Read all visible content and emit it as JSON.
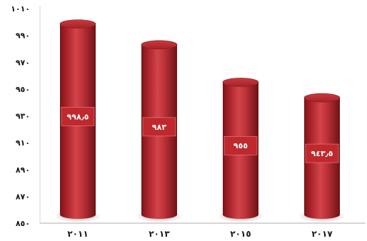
{
  "chart_data": {
    "type": "bar",
    "bar_shape": "cylinder",
    "categories": [
      "٢٠١١",
      "٢٠١٣",
      "٢٠١٥",
      "٢٠١٧"
    ],
    "values": [
      998.5,
      983,
      955,
      943.5
    ],
    "value_labels": [
      "٩٩٨٫٥",
      "٩٨٣",
      "٩٥٥",
      "٩٤٣٫٥"
    ],
    "yticks": [
      850,
      870,
      890,
      910,
      930,
      950,
      970,
      990,
      1010
    ],
    "ytick_labels": [
      "٨٥٠",
      "٨٧٠",
      "٨٩٠",
      "٩١٠",
      "٩٣٠",
      "٩٥٠",
      "٩٧٠",
      "٩٩٠",
      "١٠١٠"
    ],
    "ylim": [
      850,
      1010
    ],
    "grid": false,
    "legend": "none",
    "colors": {
      "bar": "#b8282d",
      "bar_dark": "#7a1518",
      "bar_light": "#e2585a",
      "label_box": "#c0282d",
      "axis": "#c8c8c8"
    }
  }
}
